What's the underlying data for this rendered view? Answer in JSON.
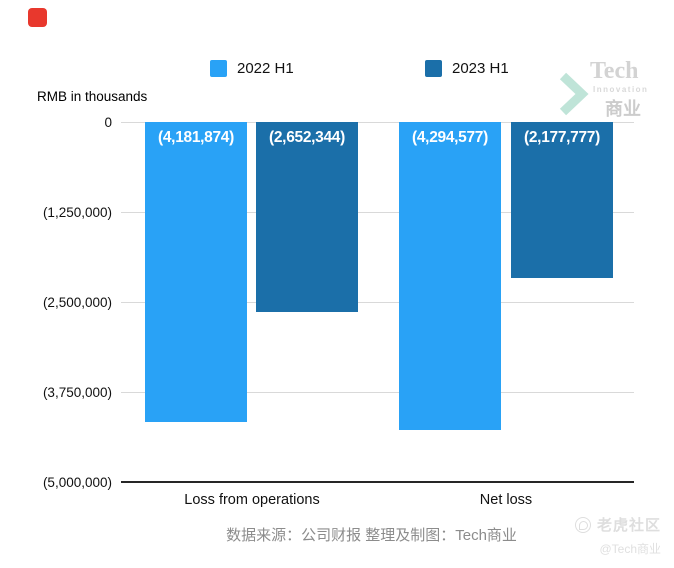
{
  "logo_topleft": {
    "name": "red-app-icon",
    "color": "#e8382d"
  },
  "brand": {
    "title": "Tech",
    "subtitle": "Innovation",
    "cn": "商业",
    "chevron_color": "#bfe4d8"
  },
  "chart_data": {
    "type": "bar",
    "title": "",
    "ylabel": "RMB in thousands",
    "categories": [
      "Loss from operations",
      "Net loss"
    ],
    "series": [
      {
        "name": "2022 H1",
        "color": "#29a2f6",
        "values": [
          -4181874,
          -4294577
        ],
        "labels": [
          "(4,181,874)",
          "(4,294,577)"
        ]
      },
      {
        "name": "2023 H1",
        "color": "#1b6fa9",
        "values": [
          -2652344,
          -2177777
        ],
        "labels": [
          "(2,652,344)",
          "(2,177,777)"
        ]
      }
    ],
    "ylim": [
      -5000000,
      0
    ],
    "yticks": [
      "0",
      "(1,250,000)",
      "(2,500,000)",
      "(3,750,000)",
      "(5,000,000)"
    ],
    "grid": true,
    "legend_position": "top"
  },
  "footer": {
    "source": "数据来源：公司财报 整理及制图：Tech商业"
  },
  "watermark": {
    "community": "老虎社区",
    "handle": "@Tech商业"
  }
}
